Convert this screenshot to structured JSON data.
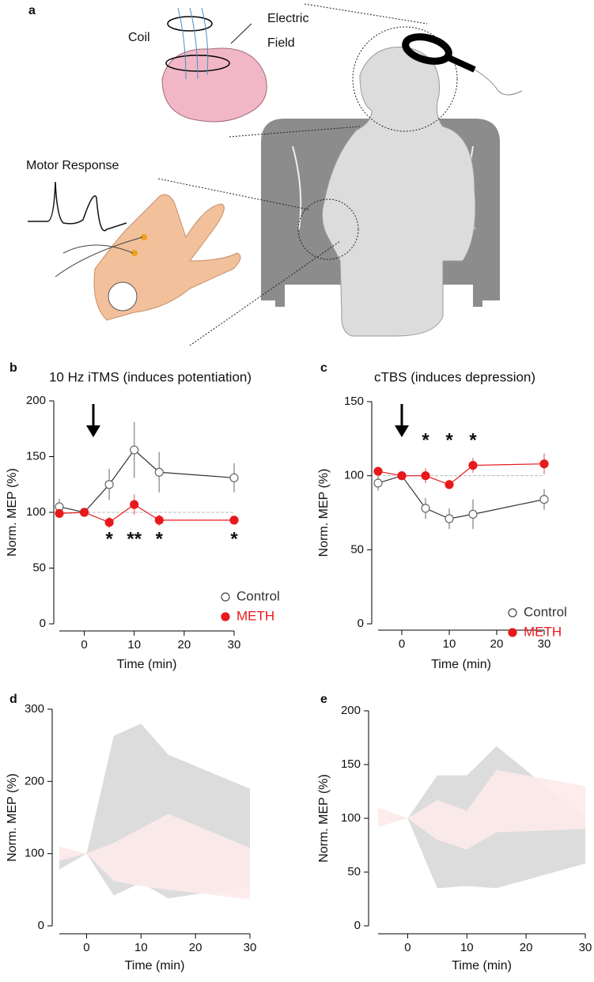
{
  "illustration": {
    "panel_label": "a",
    "coil": "Coil",
    "electric_field": [
      "Electric",
      "Field"
    ],
    "motor_response": "Motor Response"
  },
  "chart_data": [
    {
      "type": "line",
      "panel_label": "b",
      "title": "10 Hz iTMS (induces potentiation)",
      "x_label": "Time (min)",
      "y_label": "Norm. MEP (%)",
      "x": [
        -5,
        0,
        5,
        10,
        15,
        30
      ],
      "xlim": [
        -5,
        30
      ],
      "xticks": [
        0,
        10,
        20,
        30
      ],
      "ylim": [
        0,
        200
      ],
      "yticks": [
        0,
        50,
        100,
        150,
        200
      ],
      "reference_line": 100,
      "series": [
        {
          "name": "Control",
          "color": "#333333",
          "marker_fill": "#ffffff",
          "values": [
            105,
            100,
            125,
            156,
            136,
            131
          ],
          "errors": [
            7,
            0,
            14,
            25,
            18,
            13
          ]
        },
        {
          "name": "METH",
          "color": "#e8191c",
          "marker_fill": "#e8191c",
          "values": [
            99,
            100,
            91,
            107,
            93,
            93
          ],
          "errors": [
            3,
            0,
            5,
            9,
            5,
            3
          ]
        }
      ],
      "annotations": [
        {
          "x": 5,
          "text": "*"
        },
        {
          "x": 10,
          "text": "**"
        },
        {
          "x": 15,
          "text": "*"
        },
        {
          "x": 30,
          "text": "*"
        }
      ]
    },
    {
      "type": "line",
      "panel_label": "c",
      "title": "cTBS (induces depression)",
      "x_label": "Time (min)",
      "y_label": "Norm. MEP (%)",
      "x": [
        -5,
        0,
        5,
        10,
        15,
        30
      ],
      "xlim": [
        -5,
        30
      ],
      "xticks": [
        0,
        10,
        20,
        30
      ],
      "ylim": [
        0,
        150
      ],
      "yticks": [
        0,
        50,
        100,
        150
      ],
      "reference_line": 100,
      "series": [
        {
          "name": "Control",
          "color": "#333333",
          "marker_fill": "#ffffff",
          "values": [
            95,
            100,
            78,
            71,
            74,
            84
          ],
          "errors": [
            5,
            0,
            7,
            7,
            10,
            7
          ]
        },
        {
          "name": "METH",
          "color": "#e8191c",
          "marker_fill": "#e8191c",
          "values": [
            103,
            100,
            100,
            94,
            107,
            108
          ],
          "errors": [
            3,
            0,
            5,
            3,
            5,
            7
          ]
        }
      ],
      "annotations": [
        {
          "x": 5,
          "text": "*"
        },
        {
          "x": 10,
          "text": "*"
        },
        {
          "x": 15,
          "text": "*"
        }
      ]
    },
    {
      "type": "area",
      "panel_label": "d",
      "x_label": "Time (min)",
      "y_label": "Norm. MEP (%)",
      "x": [
        -5,
        0,
        5,
        10,
        15,
        30
      ],
      "xlim": [
        -5,
        30
      ],
      "xticks": [
        0,
        10,
        20,
        30
      ],
      "ylim": [
        0,
        300
      ],
      "yticks": [
        0,
        100,
        200,
        300
      ],
      "series": [
        {
          "color": "#dcdcdc",
          "upper": [
            100,
            100,
            263,
            280,
            237,
            190
          ],
          "lower": [
            78,
            100,
            42,
            60,
            38,
            55
          ]
        },
        {
          "color": "#fdeaea",
          "upper": [
            110,
            100,
            115,
            135,
            155,
            108
          ],
          "lower": [
            90,
            100,
            62,
            55,
            50,
            37
          ]
        }
      ]
    },
    {
      "type": "area",
      "panel_label": "e",
      "x_label": "Time (min)",
      "y_label": "Norm. MEP (%)",
      "x": [
        -5,
        0,
        5,
        10,
        15,
        30
      ],
      "xlim": [
        -5,
        30
      ],
      "xticks": [
        0,
        10,
        20,
        30
      ],
      "ylim": [
        0,
        200
      ],
      "yticks": [
        0,
        50,
        100,
        150,
        200
      ],
      "series": [
        {
          "color": "#dcdcdc",
          "upper": [
            88,
            100,
            140,
            140,
            167,
            100
          ],
          "lower": [
            88,
            100,
            35,
            37,
            35,
            58
          ]
        },
        {
          "color": "#fdeaea",
          "upper": [
            110,
            100,
            117,
            107,
            145,
            130
          ],
          "lower": [
            92,
            100,
            80,
            71,
            87,
            90
          ]
        }
      ]
    }
  ]
}
